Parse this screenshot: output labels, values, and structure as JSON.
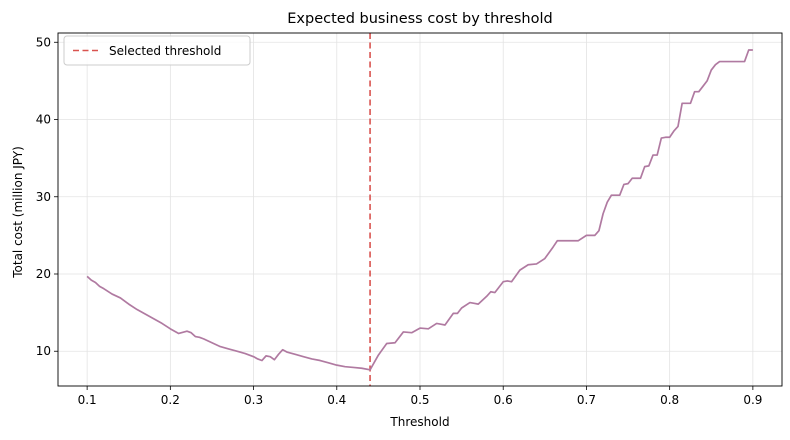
{
  "chart_data": {
    "type": "line",
    "title": "Expected business cost by threshold",
    "xlabel": "Threshold",
    "ylabel": "Total cost (million JPY)",
    "xlim": [
      0.065,
      0.935
    ],
    "ylim": [
      5.5,
      51.2
    ],
    "xticks": [
      0.1,
      0.2,
      0.3,
      0.4,
      0.5,
      0.6,
      0.7,
      0.8,
      0.9
    ],
    "xtick_labels": [
      "0.1",
      "0.2",
      "0.3",
      "0.4",
      "0.5",
      "0.6",
      "0.7",
      "0.8",
      "0.9"
    ],
    "yticks": [
      10,
      20,
      30,
      40,
      50
    ],
    "ytick_labels": [
      "10",
      "20",
      "30",
      "40",
      "50"
    ],
    "grid": true,
    "legend_position": "top-left",
    "colors": {
      "line": "#b07aa1",
      "threshold": "#d9534f"
    },
    "threshold": {
      "name": "Selected threshold",
      "x": 0.44,
      "style": "dashed"
    },
    "series": [
      {
        "x": [
          0.1,
          0.105,
          0.11,
          0.115,
          0.12,
          0.13,
          0.14,
          0.15,
          0.16,
          0.17,
          0.18,
          0.19,
          0.2,
          0.21,
          0.22,
          0.225,
          0.23,
          0.235,
          0.24,
          0.25,
          0.26,
          0.27,
          0.28,
          0.29,
          0.3,
          0.305,
          0.31,
          0.315,
          0.32,
          0.325,
          0.33,
          0.335,
          0.34,
          0.35,
          0.36,
          0.37,
          0.38,
          0.39,
          0.4,
          0.41,
          0.42,
          0.43,
          0.44,
          0.45,
          0.46,
          0.47,
          0.48,
          0.49,
          0.5,
          0.51,
          0.52,
          0.525,
          0.53,
          0.54,
          0.545,
          0.55,
          0.56,
          0.565,
          0.57,
          0.58,
          0.585,
          0.59,
          0.6,
          0.605,
          0.61,
          0.62,
          0.63,
          0.64,
          0.65,
          0.66,
          0.665,
          0.67,
          0.675,
          0.68,
          0.69,
          0.7,
          0.705,
          0.71,
          0.715,
          0.72,
          0.725,
          0.73,
          0.735,
          0.74,
          0.745,
          0.75,
          0.755,
          0.76,
          0.765,
          0.77,
          0.775,
          0.78,
          0.785,
          0.79,
          0.795,
          0.8,
          0.805,
          0.81,
          0.815,
          0.82,
          0.825,
          0.83,
          0.835,
          0.84,
          0.845,
          0.85,
          0.855,
          0.86,
          0.865,
          0.87,
          0.875,
          0.88,
          0.885,
          0.89,
          0.895,
          0.9
        ],
        "values": [
          19.7,
          19.2,
          18.9,
          18.4,
          18.1,
          17.4,
          16.9,
          16.1,
          15.4,
          14.8,
          14.2,
          13.6,
          12.9,
          12.3,
          12.6,
          12.4,
          11.9,
          11.8,
          11.6,
          11.1,
          10.6,
          10.3,
          10.0,
          9.7,
          9.3,
          9.0,
          8.8,
          9.4,
          9.3,
          8.9,
          9.6,
          10.2,
          9.9,
          9.6,
          9.3,
          9.0,
          8.8,
          8.5,
          8.2,
          8.0,
          7.9,
          7.8,
          7.6,
          9.5,
          11.0,
          11.1,
          12.5,
          12.4,
          13.0,
          12.9,
          13.6,
          13.5,
          13.4,
          14.9,
          14.9,
          15.6,
          16.3,
          16.2,
          16.1,
          17.1,
          17.7,
          17.6,
          19.0,
          19.1,
          19.0,
          20.5,
          21.2,
          21.3,
          22.0,
          23.5,
          24.3,
          24.3,
          24.3,
          24.3,
          24.3,
          25.0,
          25.0,
          25.0,
          25.6,
          27.8,
          29.3,
          30.2,
          30.2,
          30.2,
          31.6,
          31.7,
          32.4,
          32.4,
          32.4,
          33.9,
          34.0,
          35.4,
          35.4,
          37.6,
          37.7,
          37.7,
          38.5,
          39.1,
          42.1,
          42.1,
          42.1,
          43.6,
          43.6,
          44.3,
          45.0,
          46.4,
          47.1,
          47.5,
          47.5,
          47.5,
          47.5,
          47.5,
          47.5,
          47.5,
          49.0,
          49.0
        ]
      }
    ]
  }
}
